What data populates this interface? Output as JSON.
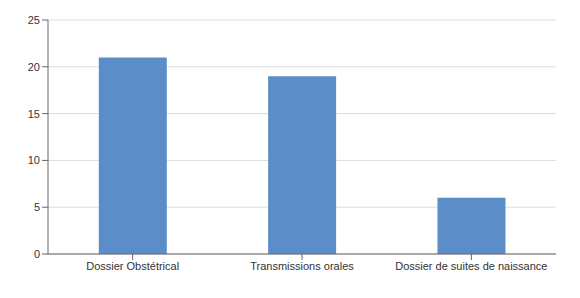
{
  "chart_data": {
    "type": "bar",
    "categories": [
      "Dossier Obstétrical",
      "Transmissions orales",
      "Dossier de suites de naissance"
    ],
    "values": [
      21,
      19,
      6
    ],
    "color": "#5b8dc8",
    "ylim": [
      0,
      25
    ],
    "yticks": [
      0,
      5,
      10,
      15,
      20,
      25
    ],
    "grid": true
  }
}
